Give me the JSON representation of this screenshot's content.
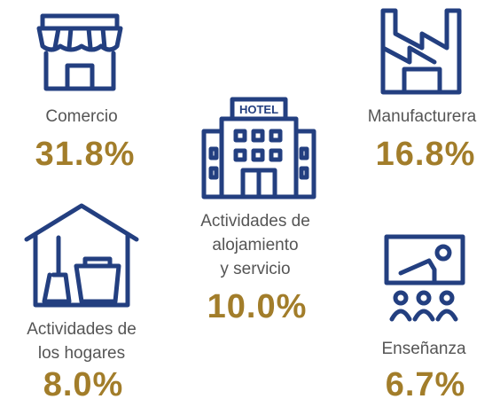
{
  "items": [
    {
      "label_lines": [
        "Comercio"
      ],
      "value": "31.8%"
    },
    {
      "label_lines": [
        "Actividades de",
        "alojamiento",
        "y servicio"
      ],
      "value": "10.0%",
      "sign": "HOTEL"
    },
    {
      "label_lines": [
        "Manufacturera"
      ],
      "value": "16.8%"
    },
    {
      "label_lines": [
        "Actividades de",
        "los hogares"
      ],
      "value": "8.0%"
    },
    {
      "label_lines": [
        "Enseñanza"
      ],
      "value": "6.7%"
    }
  ]
}
